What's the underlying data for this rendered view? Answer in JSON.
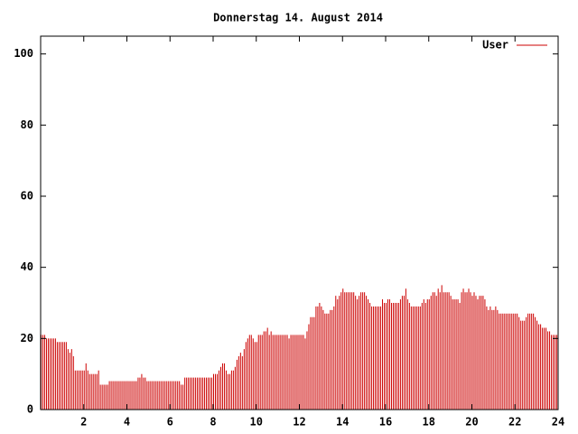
{
  "chart_data": {
    "type": "impulse",
    "title": "Donnerstag 14. August 2014",
    "series": [
      {
        "name": "User",
        "color": "#cc0000",
        "values": [
          21,
          21,
          21,
          20,
          20,
          20,
          20,
          20,
          20,
          19,
          19,
          19,
          19,
          19,
          19,
          17,
          16,
          17,
          15,
          11,
          11,
          11,
          11,
          11,
          11,
          13,
          11,
          10,
          10,
          10,
          10,
          10,
          11,
          7,
          7,
          7,
          7,
          7,
          8,
          8,
          8,
          8,
          8,
          8,
          8,
          8,
          8,
          8,
          8,
          8,
          8,
          8,
          8,
          8,
          9,
          9,
          10,
          9,
          9,
          8,
          8,
          8,
          8,
          8,
          8,
          8,
          8,
          8,
          8,
          8,
          8,
          8,
          8,
          8,
          8,
          8,
          8,
          8,
          7,
          7,
          9,
          9,
          9,
          9,
          9,
          9,
          9,
          9,
          9,
          9,
          9,
          9,
          9,
          9,
          9,
          9,
          10,
          10,
          10,
          11,
          12,
          13,
          13,
          11,
          10,
          10,
          11,
          11,
          12,
          14,
          15,
          16,
          15,
          17,
          19,
          20,
          21,
          21,
          20,
          19,
          19,
          21,
          21,
          21,
          22,
          22,
          23,
          21,
          22,
          21,
          21,
          21,
          21,
          21,
          21,
          21,
          21,
          21,
          20,
          21,
          21,
          21,
          21,
          21,
          21,
          21,
          21,
          20,
          22,
          24,
          26,
          26,
          26,
          29,
          29,
          30,
          29,
          28,
          27,
          27,
          27,
          28,
          28,
          29,
          32,
          31,
          32,
          33,
          34,
          33,
          33,
          33,
          33,
          33,
          33,
          32,
          31,
          32,
          33,
          33,
          33,
          32,
          31,
          30,
          29,
          29,
          29,
          29,
          29,
          29,
          31,
          30,
          30,
          31,
          31,
          30,
          30,
          30,
          30,
          30,
          31,
          32,
          32,
          34,
          31,
          30,
          29,
          29,
          29,
          29,
          29,
          29,
          30,
          31,
          30,
          31,
          31,
          32,
          33,
          33,
          32,
          34,
          33,
          35,
          33,
          33,
          33,
          33,
          32,
          31,
          31,
          31,
          31,
          30,
          33,
          34,
          33,
          33,
          34,
          33,
          32,
          33,
          32,
          31,
          32,
          32,
          32,
          31,
          29,
          28,
          29,
          28,
          28,
          29,
          28,
          27,
          27,
          27,
          27,
          27,
          27,
          27,
          27,
          27,
          27,
          27,
          26,
          25,
          25,
          25,
          26,
          27,
          27,
          27,
          27,
          26,
          25,
          24,
          24,
          23,
          23,
          23,
          22,
          22,
          21,
          21,
          21,
          21
        ]
      }
    ],
    "xlim": [
      0,
      24
    ],
    "xticks": [
      2,
      4,
      6,
      8,
      10,
      12,
      14,
      16,
      18,
      20,
      22,
      24
    ],
    "ylim": [
      0,
      105
    ],
    "yticks": [
      0,
      20,
      40,
      60,
      80,
      100
    ]
  }
}
